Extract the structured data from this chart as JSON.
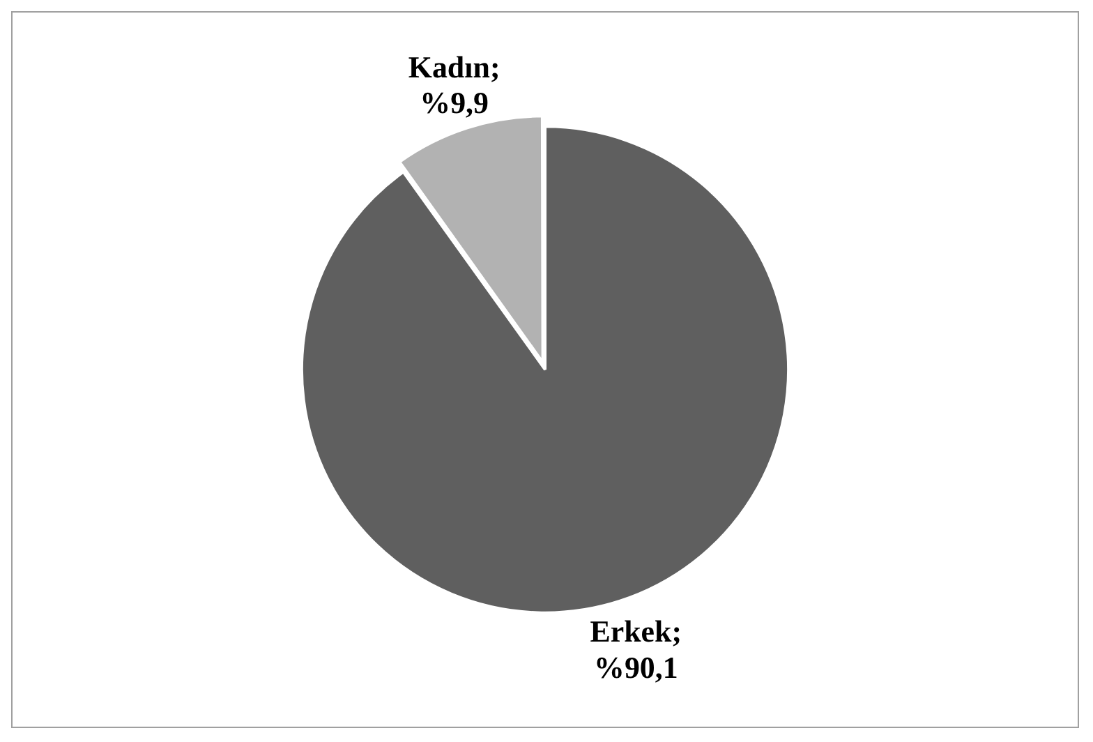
{
  "chart_data": {
    "type": "pie",
    "categories": [
      "Erkek",
      "Kadın"
    ],
    "values": [
      90.1,
      9.9
    ],
    "colors": [
      "#5f5f5f",
      "#b2b2b2"
    ],
    "value_labels": [
      "; %90,1",
      "; %9,9"
    ],
    "legend": false
  }
}
